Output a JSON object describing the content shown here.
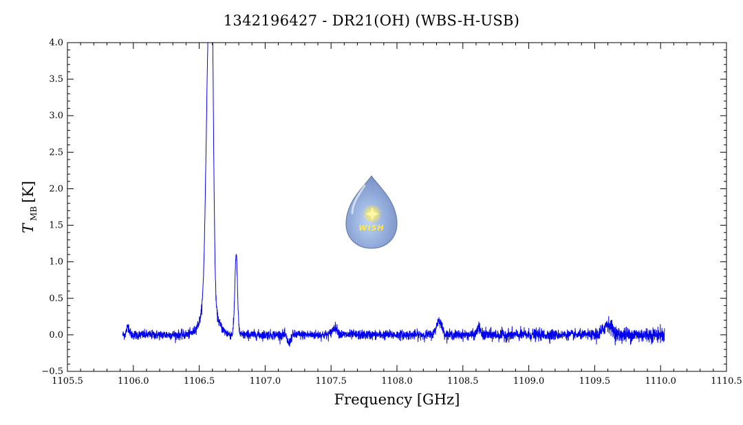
{
  "chart_data": {
    "type": "line",
    "title": "1342196427 - DR21(OH) (WBS-H-USB)",
    "xlabel": "Frequency [GHz]",
    "ylabel": {
      "symbol": "T",
      "subscript": "MB",
      "unit": "[K]"
    },
    "xlim": [
      1105.5,
      1110.5
    ],
    "ylim": [
      -0.5,
      4.0
    ],
    "x_ticks": [
      "1105.5",
      "1106.0",
      "1106.5",
      "1107.0",
      "1107.5",
      "1108.0",
      "1108.5",
      "1109.0",
      "1109.5",
      "1110.0",
      "1110.5"
    ],
    "y_ticks": [
      "−0.5",
      "0.0",
      "0.5",
      "1.0",
      "1.5",
      "2.0",
      "2.5",
      "3.0",
      "3.5",
      "4.0"
    ],
    "grid": false,
    "line_color": "#0000ee",
    "series": [
      {
        "x_range": [
          1105.92,
          1110.03
        ],
        "baseline_noise": 0.045,
        "features": [
          {
            "type": "peak",
            "center": 1106.572,
            "height": 3.55,
            "width": 0.02
          },
          {
            "type": "peak",
            "center": 1106.595,
            "height": 3.05,
            "width": 0.013
          },
          {
            "type": "peak",
            "center": 1106.575,
            "height": 0.45,
            "width": 0.055
          },
          {
            "type": "peak",
            "center": 1106.78,
            "height": 1.1,
            "width": 0.01
          },
          {
            "type": "peak",
            "center": 1105.96,
            "height": 0.12,
            "width": 0.01
          },
          {
            "type": "dip",
            "center": 1107.18,
            "depth": 0.12,
            "width": 0.012
          },
          {
            "type": "peak",
            "center": 1107.53,
            "height": 0.1,
            "width": 0.02
          },
          {
            "type": "peak",
            "center": 1108.32,
            "height": 0.2,
            "width": 0.02
          },
          {
            "type": "peak",
            "center": 1108.62,
            "height": 0.1,
            "width": 0.012
          },
          {
            "type": "peak",
            "center": 1109.6,
            "height": 0.15,
            "width": 0.03
          }
        ]
      }
    ]
  },
  "logo": {
    "text": "WISH",
    "colors": {
      "drop": "#8aa5d8",
      "glow": "#ffe94a"
    }
  }
}
